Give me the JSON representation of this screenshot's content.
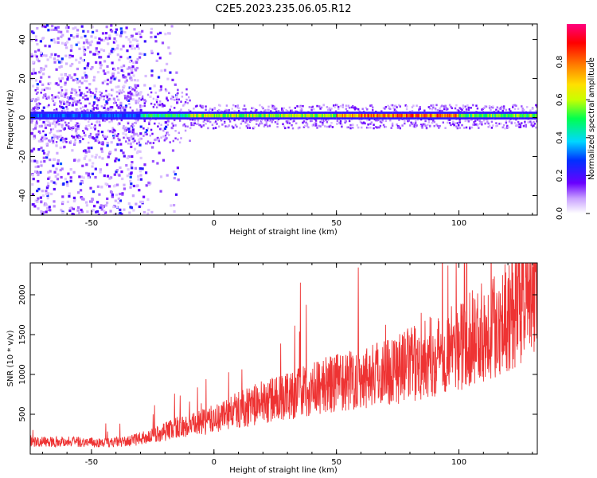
{
  "title": "C2E5.2023.235.06.05.R12",
  "chart_data": [
    {
      "type": "heatmap",
      "xlabel": "Height of straight line (km)",
      "ylabel": "Frequency (Hz)",
      "xlim": [
        -75,
        132
      ],
      "ylim": [
        -50,
        48
      ],
      "x_ticks": [
        "-50",
        "0",
        "50",
        "100"
      ],
      "x_tick_values": [
        -50,
        0,
        50,
        100
      ],
      "y_ticks": [
        "40",
        "20",
        "0",
        "-20",
        "-40"
      ],
      "y_tick_values": [
        40,
        20,
        0,
        -20,
        -40
      ],
      "colorbar": {
        "label": "Normalized spectral amplitude",
        "ticks": [
          "0.0",
          "0.2",
          "0.4",
          "0.6",
          "0.8"
        ],
        "tick_values": [
          0.0,
          0.2,
          0.4,
          0.6,
          0.8
        ],
        "range": [
          0,
          1
        ]
      },
      "ridge": {
        "frequency_hz": 1,
        "bands": [
          {
            "x_start": -75,
            "x_end": -30,
            "level": 0.3
          },
          {
            "x_start": -30,
            "x_end": -10,
            "level": 0.5
          },
          {
            "x_start": -10,
            "x_end": 50,
            "level": 0.6
          },
          {
            "x_start": 50,
            "x_end": 100,
            "level": 0.8
          },
          {
            "x_start": 100,
            "x_end": 132,
            "level": 0.55
          }
        ]
      }
    },
    {
      "type": "line",
      "xlabel": "Height of straight line (km)",
      "ylabel": "SNR (10 * v/v)",
      "xlim": [
        -75,
        132
      ],
      "ylim": [
        0,
        2400
      ],
      "x_ticks": [
        "-50",
        "0",
        "50",
        "100"
      ],
      "x_tick_values": [
        -50,
        0,
        50,
        100
      ],
      "y_ticks": [
        "2000",
        "1500",
        "1000",
        "500"
      ],
      "y_tick_values": [
        2000,
        1500,
        1000,
        500
      ],
      "color": "#ee3333",
      "trend": {
        "x": [
          -75,
          -60,
          -45,
          -35,
          -25,
          -15,
          -10,
          0,
          10,
          20,
          40,
          60,
          80,
          100,
          115,
          132
        ],
        "y": [
          150,
          160,
          140,
          160,
          230,
          340,
          350,
          440,
          560,
          650,
          820,
          970,
          1120,
          1350,
          1640,
          2050
        ]
      }
    }
  ]
}
